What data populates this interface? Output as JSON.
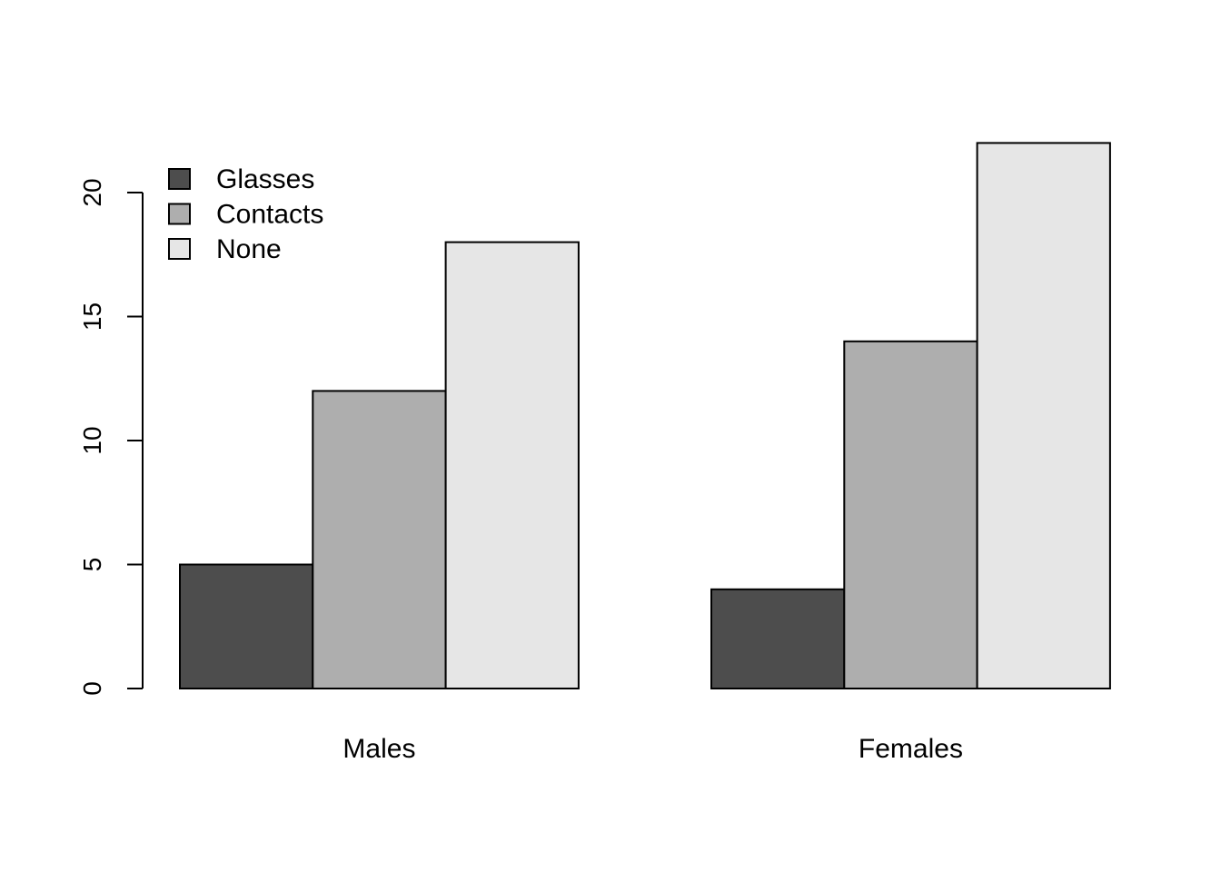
{
  "chart_data": {
    "type": "bar",
    "mode": "grouped",
    "title": "",
    "xlabel": "",
    "ylabel": "",
    "categories": [
      "Males",
      "Females"
    ],
    "series": [
      {
        "name": "Glasses",
        "color": "#4d4d4d",
        "values": [
          5,
          4
        ]
      },
      {
        "name": "Contacts",
        "color": "#aeaeae",
        "values": [
          12,
          14
        ]
      },
      {
        "name": "None",
        "color": "#e6e6e6",
        "values": [
          18,
          22
        ]
      }
    ],
    "yticks": [
      0,
      5,
      10,
      15,
      20
    ],
    "ytick_labels": [
      "0",
      "5",
      "10",
      "15",
      "20"
    ],
    "ylim": [
      0,
      22
    ],
    "grid": false,
    "legend": {
      "position": "top-left",
      "frame": false
    }
  }
}
